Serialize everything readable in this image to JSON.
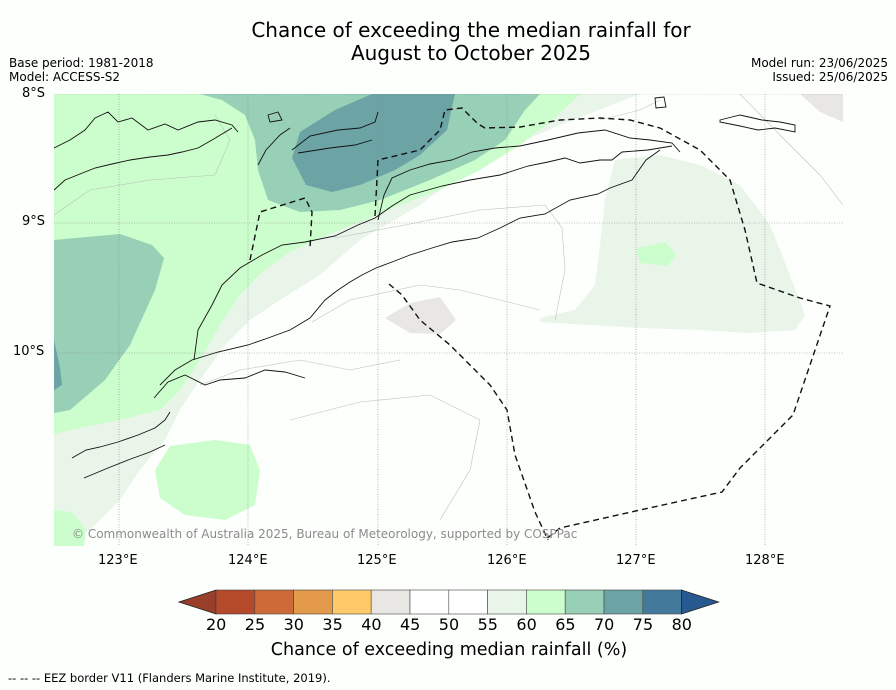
{
  "title_line1": "Chance of exceeding the median rainfall for",
  "title_line2": "August to October 2025",
  "meta": {
    "base_period": "Base period: 1981-2018",
    "model": "Model: ACCESS-S2",
    "model_run": "Model run: 23/06/2025",
    "issued": "Issued: 25/06/2025"
  },
  "map": {
    "lat_labels": [
      "8°S",
      "9°S",
      "10°S"
    ],
    "lon_labels": [
      "123°E",
      "124°E",
      "125°E",
      "126°E",
      "127°E",
      "128°E"
    ],
    "copyright": "© Commonwealth of Australia 2025, Bureau of Meteorology, supported by COSPPac"
  },
  "colorbar": {
    "ticks": [
      "20",
      "25",
      "30",
      "35",
      "40",
      "45",
      "50",
      "55",
      "60",
      "65",
      "70",
      "75",
      "80"
    ],
    "colors": [
      "#983e2b",
      "#b54a2b",
      "#cd6a37",
      "#e49a4b",
      "#fdc969",
      "#e9e7e4",
      "#ffffff",
      "#ffffff",
      "#eaf5ea",
      "#ccfdcc",
      "#98cfb7",
      "#6ca3a5",
      "#437a9b",
      "#275990"
    ],
    "label": "Chance of exceeding median rainfall (%)"
  },
  "footer": "--  --  -- EEZ border V11 (Flanders Marine Institute, 2019)."
}
